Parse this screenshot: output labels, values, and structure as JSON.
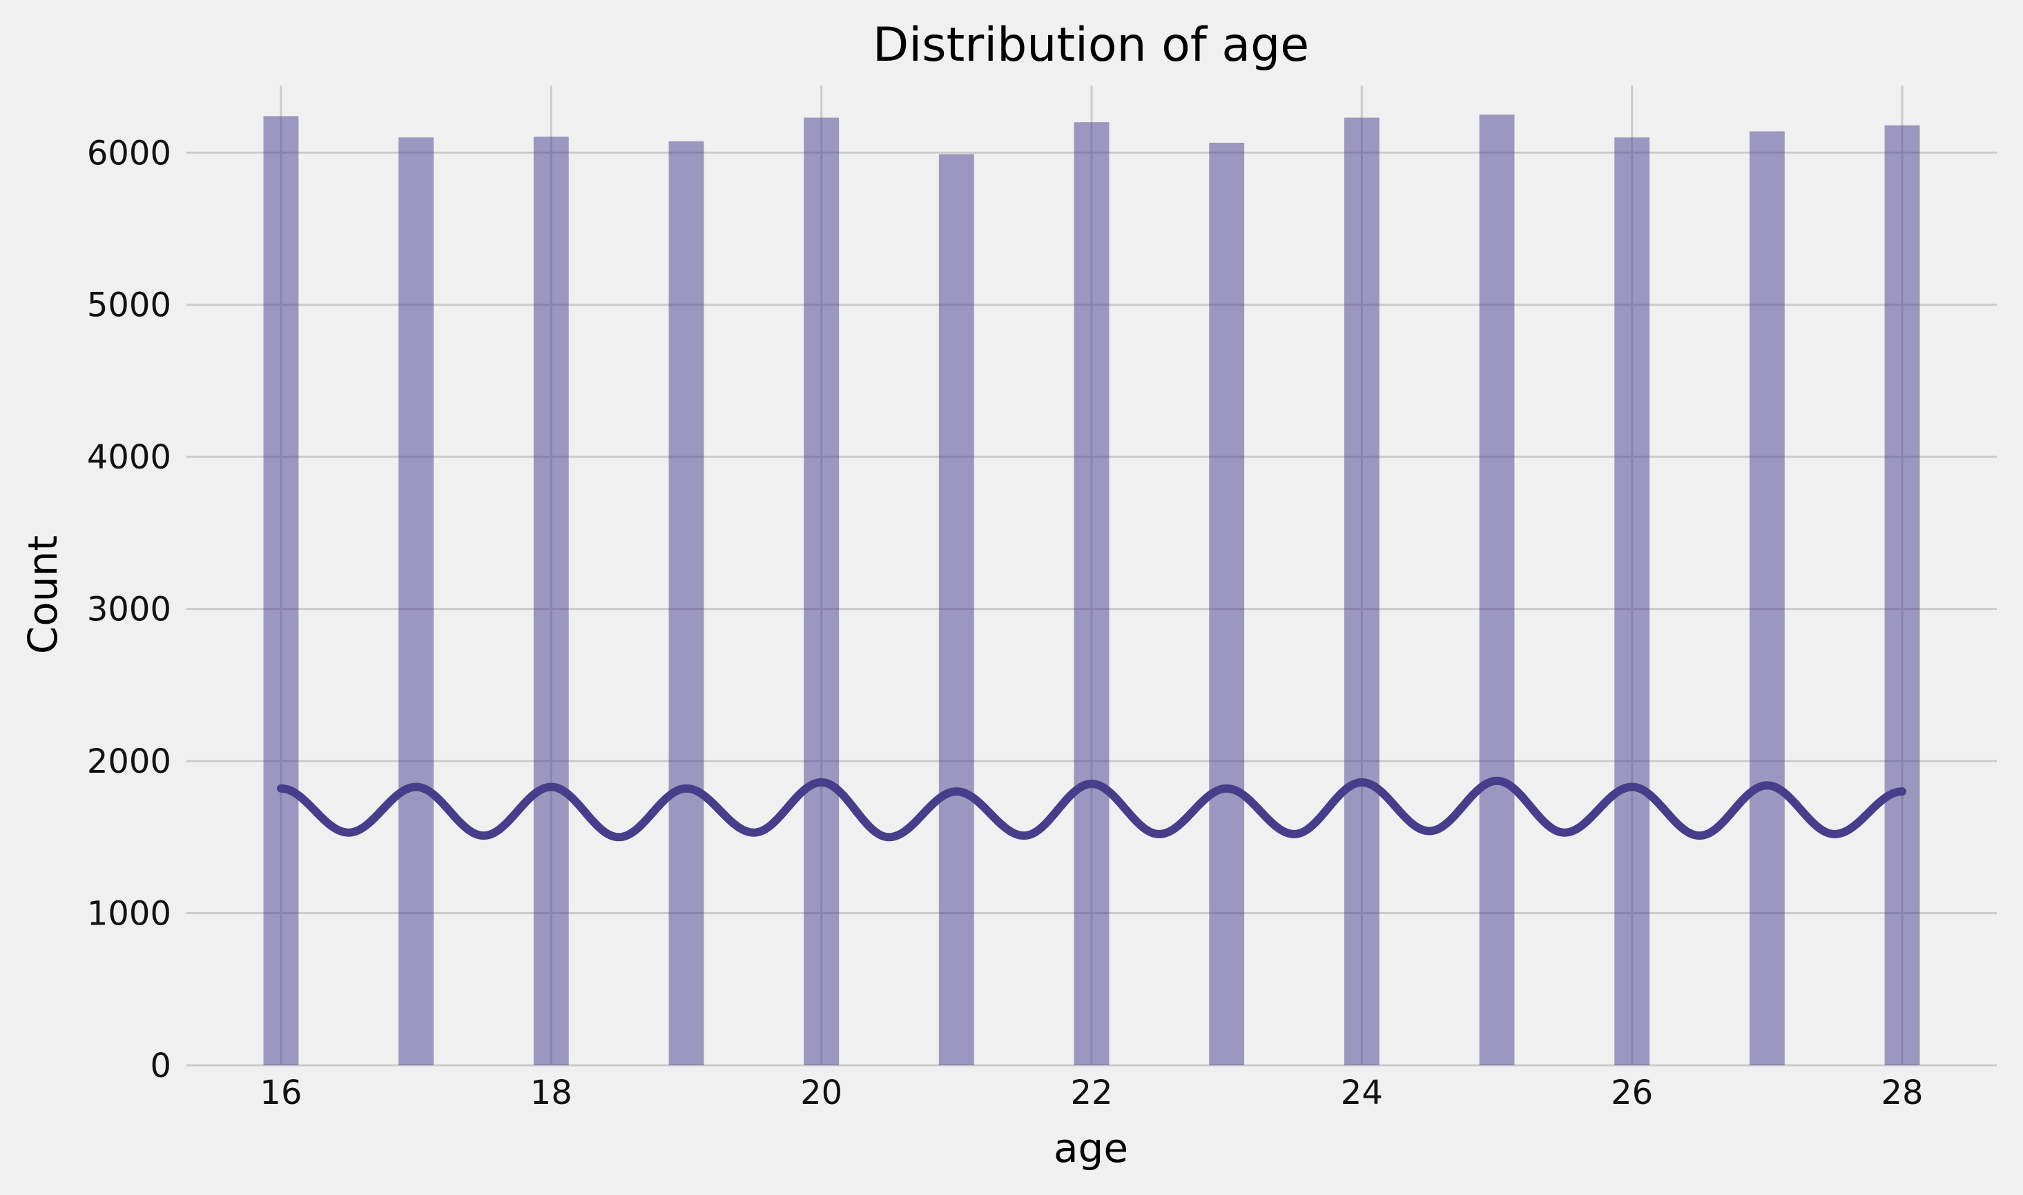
{
  "chart_data": {
    "type": "bar",
    "title": "Distribution of age",
    "xlabel": "age",
    "ylabel": "Count",
    "xlim": [
      15.3,
      28.7
    ],
    "ylim": [
      0,
      6550
    ],
    "xticks": [
      16,
      18,
      20,
      22,
      24,
      26,
      28
    ],
    "yticks": [
      0,
      1000,
      2000,
      3000,
      4000,
      5000,
      6000
    ],
    "grid": true,
    "bars": [
      {
        "x": 16,
        "count": 6240
      },
      {
        "x": 17,
        "count": 6100
      },
      {
        "x": 18,
        "count": 6105
      },
      {
        "x": 19,
        "count": 6075
      },
      {
        "x": 20,
        "count": 6230
      },
      {
        "x": 21,
        "count": 5990
      },
      {
        "x": 22,
        "count": 6200
      },
      {
        "x": 23,
        "count": 6065
      },
      {
        "x": 24,
        "count": 6230
      },
      {
        "x": 25,
        "count": 6250
      },
      {
        "x": 26,
        "count": 6100
      },
      {
        "x": 27,
        "count": 6140
      },
      {
        "x": 28,
        "count": 6180
      }
    ],
    "bar_width": 0.26,
    "kde": {
      "peaks": [
        1820,
        1830,
        1830,
        1820,
        1860,
        1800,
        1850,
        1820,
        1860,
        1870,
        1830,
        1840,
        1800
      ],
      "troughs": [
        1530,
        1510,
        1500,
        1530,
        1500,
        1510,
        1520,
        1520,
        1540,
        1530,
        1510,
        1520
      ]
    },
    "colors": {
      "bar": "#483d8b",
      "line": "#483d8b",
      "grid": "#cbcbcb",
      "background": "#f0f0f0"
    }
  }
}
